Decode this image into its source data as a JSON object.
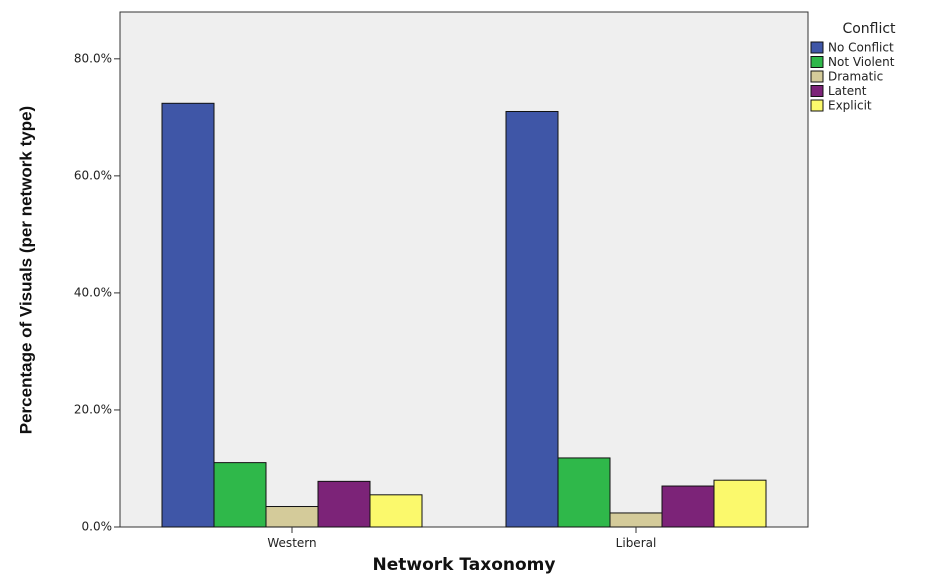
{
  "chart_data": {
    "type": "bar",
    "xlabel": "Network Taxonomy",
    "ylabel": "Percentage of Visuals (per network type)",
    "categories": [
      "Western",
      "Liberal"
    ],
    "ylim": [
      0,
      88
    ],
    "yticks": [
      0,
      20,
      40,
      60,
      80
    ],
    "ytick_labels": [
      "0.0%",
      "20.0%",
      "40.0%",
      "60.0%",
      "80.0%"
    ],
    "grid": false,
    "legend": {
      "title": "Conflict",
      "position": "right"
    },
    "series": [
      {
        "name": "No Conflict",
        "color": "#3f56a7",
        "values": [
          72.4,
          71.0
        ]
      },
      {
        "name": "Not Violent",
        "color": "#2fb84a",
        "values": [
          11.0,
          11.8
        ]
      },
      {
        "name": "Dramatic",
        "color": "#d4cb9a",
        "values": [
          3.5,
          2.4
        ]
      },
      {
        "name": "Latent",
        "color": "#7c2378",
        "values": [
          7.8,
          7.0
        ]
      },
      {
        "name": "Explicit",
        "color": "#fbf96c",
        "values": [
          5.5,
          8.0
        ]
      }
    ]
  }
}
